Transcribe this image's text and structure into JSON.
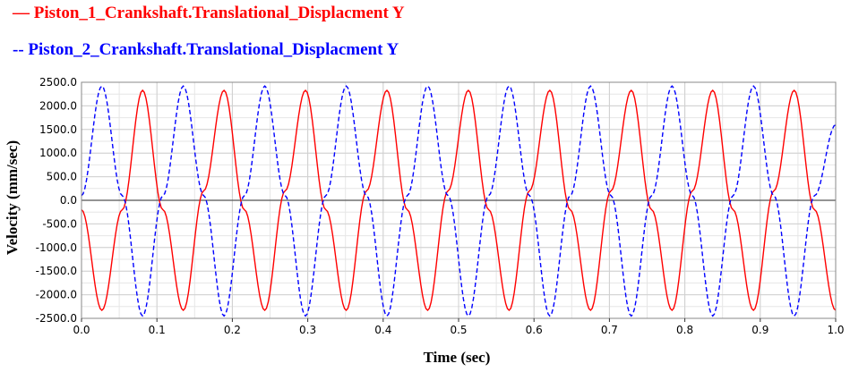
{
  "chart_data": {
    "type": "line",
    "title": "",
    "xlabel": "Time (sec)",
    "ylabel": "Velocity (mm/sec)",
    "xlim": [
      0.0,
      1.0
    ],
    "ylim": [
      -2500.0,
      2500.0
    ],
    "x_ticks": [
      "0.0",
      "0.1",
      "0.2",
      "0.3",
      "0.4",
      "0.5",
      "0.6",
      "0.7",
      "0.8",
      "0.9",
      "1.0"
    ],
    "y_ticks": [
      "2500.0",
      "2000.0",
      "1500.0",
      "1000.0",
      "500.0",
      "0.0",
      "-500.0",
      "-1000.0",
      "-1500.0",
      "-2000.0",
      "-2500.0"
    ],
    "grid": true,
    "legend_position": "top-left",
    "series": [
      {
        "name": "Piston_1_Crankshaft.Translational_Displacment Y",
        "style": "solid",
        "color": "#ff0000",
        "x": [
          0.0,
          0.027,
          0.054,
          0.081,
          0.108,
          0.135,
          0.162,
          0.189,
          0.216,
          0.243,
          0.27,
          0.297,
          0.324,
          0.351,
          0.378,
          0.405,
          0.432,
          0.459,
          0.486,
          0.513,
          0.54,
          0.567,
          0.594,
          0.621,
          0.648,
          0.675,
          0.702,
          0.729,
          0.756,
          0.783,
          0.81,
          0.837,
          0.864,
          0.891,
          0.918,
          0.945,
          0.972,
          1.0
        ],
        "y": [
          -200,
          -2330,
          -200,
          2330,
          -200,
          -2330,
          200,
          2330,
          -200,
          -2330,
          200,
          2330,
          -200,
          -2330,
          200,
          2330,
          -200,
          -2330,
          200,
          2330,
          -200,
          -2330,
          200,
          2330,
          -200,
          -2330,
          200,
          2330,
          -200,
          -2330,
          200,
          2330,
          -200,
          -2330,
          200,
          2330,
          -200,
          -2330
        ]
      },
      {
        "name": "Piston_2_Crankshaft.Translational_Displacment Y",
        "style": "dashed",
        "color": "#0000ff",
        "x": [
          0.0,
          0.027,
          0.054,
          0.081,
          0.108,
          0.135,
          0.162,
          0.189,
          0.216,
          0.243,
          0.27,
          0.297,
          0.324,
          0.351,
          0.378,
          0.405,
          0.432,
          0.459,
          0.486,
          0.513,
          0.54,
          0.567,
          0.594,
          0.621,
          0.648,
          0.675,
          0.702,
          0.729,
          0.756,
          0.783,
          0.81,
          0.837,
          0.864,
          0.891,
          0.918,
          0.945,
          0.972,
          1.0
        ],
        "y": [
          100,
          2420,
          100,
          -2450,
          100,
          2420,
          100,
          -2450,
          100,
          2420,
          100,
          -2450,
          100,
          2420,
          100,
          -2450,
          100,
          2420,
          100,
          -2450,
          100,
          2420,
          100,
          -2450,
          100,
          2420,
          100,
          -2450,
          100,
          2420,
          100,
          -2450,
          100,
          2420,
          100,
          -2450,
          100,
          1600
        ]
      }
    ]
  },
  "colors": {
    "grid": "#d0d0d0",
    "plot_border": "#888888",
    "zero_line": "#555555"
  }
}
